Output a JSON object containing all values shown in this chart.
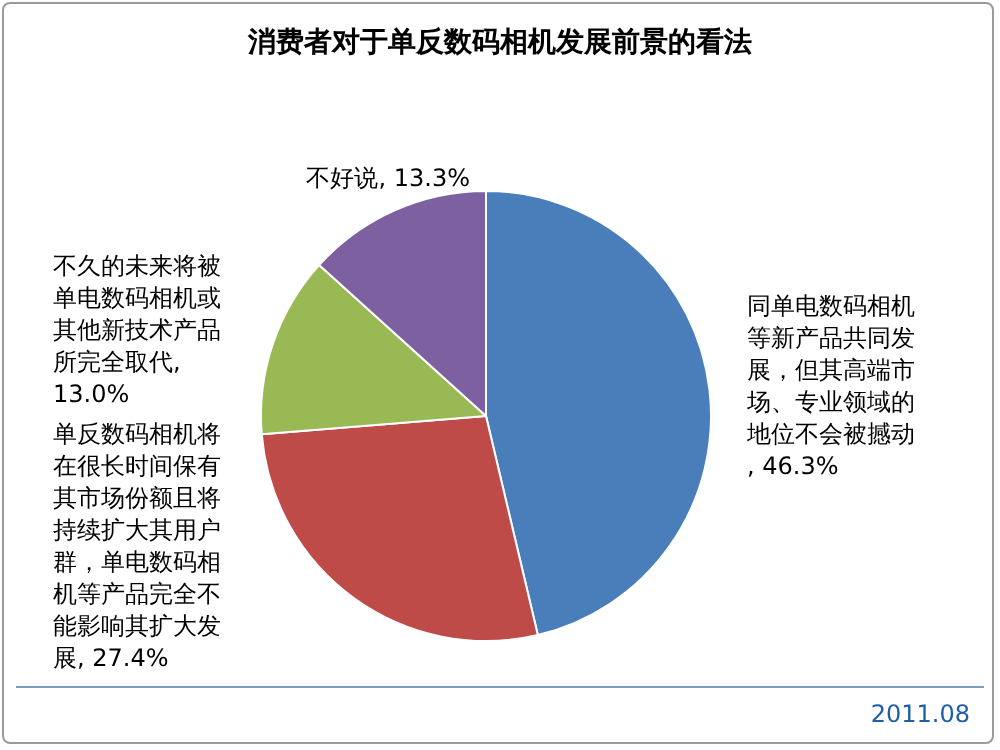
{
  "chart_data": {
    "type": "pie",
    "title": "消费者对于单反数码相机发展前景的看法",
    "categories": [
      "同单电数码相机等新产品共同发展，但其高端市场、专业领域的地位不会被撼动",
      "单反数码相机将在很长时间保有其市场份额且将持续扩大其用户群，单电数码相机等产品完全不能影响其扩大发展",
      "不久的未来将被单电数码相机或其他新技术产品所完全取代",
      "不好说"
    ],
    "values": [
      46.3,
      27.4,
      13.0,
      13.3
    ],
    "value_labels": [
      ", 46.3%",
      ", 27.4%",
      ", 13.0%",
      ", 13.3%"
    ],
    "colors": [
      "#4a7ebb",
      "#be4b48",
      "#98b954",
      "#7d60a0"
    ],
    "legend": false,
    "annotations": [
      "2011.08"
    ]
  }
}
